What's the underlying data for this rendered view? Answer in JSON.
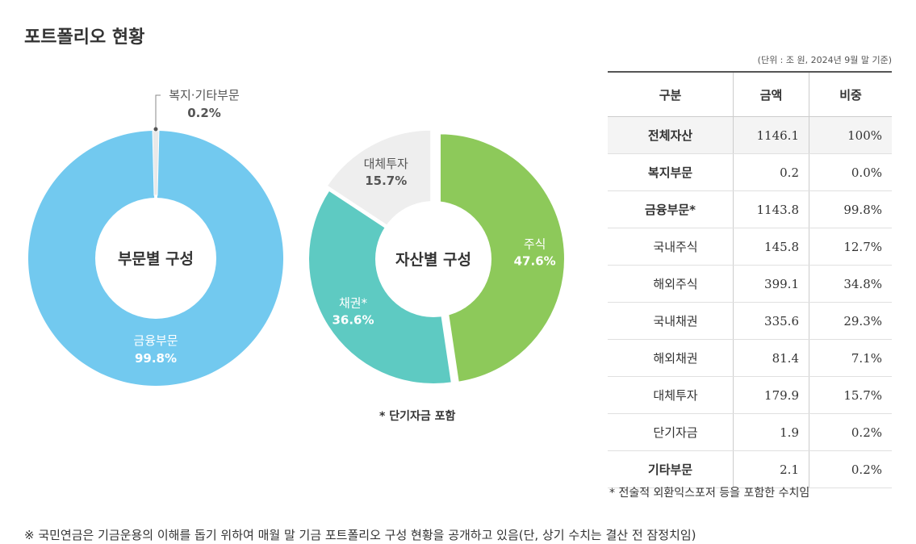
{
  "title": "포트폴리오 현황",
  "unit_note": "(단위 : 조 원, 2024년 9월 말 기준)",
  "chart_data": [
    {
      "type": "pie",
      "center_label": "부문별 구성",
      "slices": [
        {
          "label": "금융부문",
          "value": 99.8,
          "value_label": "99.8%",
          "color": "#72c9ef"
        },
        {
          "label": "복지·기타부문",
          "value": 0.2,
          "value_label": "0.2%",
          "color": "#e9e9e9"
        }
      ]
    },
    {
      "type": "pie",
      "center_label": "자산별 구성",
      "slices": [
        {
          "label": "주식",
          "value": 47.6,
          "value_label": "47.6%",
          "color": "#8dc95a"
        },
        {
          "label": "채권*",
          "value": 36.6,
          "value_label": "36.6%",
          "color": "#5ecac2"
        },
        {
          "label": "대체투자",
          "value": 15.7,
          "value_label": "15.7%",
          "color": "#eeeeee"
        }
      ]
    }
  ],
  "chart_note": "* 단기자금 포함",
  "table": {
    "headers": [
      "구분",
      "금액",
      "비중"
    ],
    "rows": [
      {
        "label": "전체자산",
        "amount": "1146.1",
        "share": "100%"
      },
      {
        "label": "복지부문",
        "amount": "0.2",
        "share": "0.0%"
      },
      {
        "label": "금융부문*",
        "amount": "1143.8",
        "share": "99.8%"
      },
      {
        "label": "국내주식",
        "amount": "145.8",
        "share": "12.7%"
      },
      {
        "label": "해외주식",
        "amount": "399.1",
        "share": "34.8%"
      },
      {
        "label": "국내채권",
        "amount": "335.6",
        "share": "29.3%"
      },
      {
        "label": "해외채권",
        "amount": "81.4",
        "share": "7.1%"
      },
      {
        "label": "대체투자",
        "amount": "179.9",
        "share": "15.7%"
      },
      {
        "label": "단기자금",
        "amount": "1.9",
        "share": "0.2%"
      },
      {
        "label": "기타부문",
        "amount": "2.1",
        "share": "0.2%"
      }
    ]
  },
  "table_note": "* 전술적 외환익스포저 등을 포함한 수치임",
  "footnote": "※  국민연금은 기금운용의 이해를 돕기 위하여 매월 말 기금 포트폴리오 구성 현황을 공개하고 있음(단, 상기 수치는 결산 전 잠정치임)"
}
